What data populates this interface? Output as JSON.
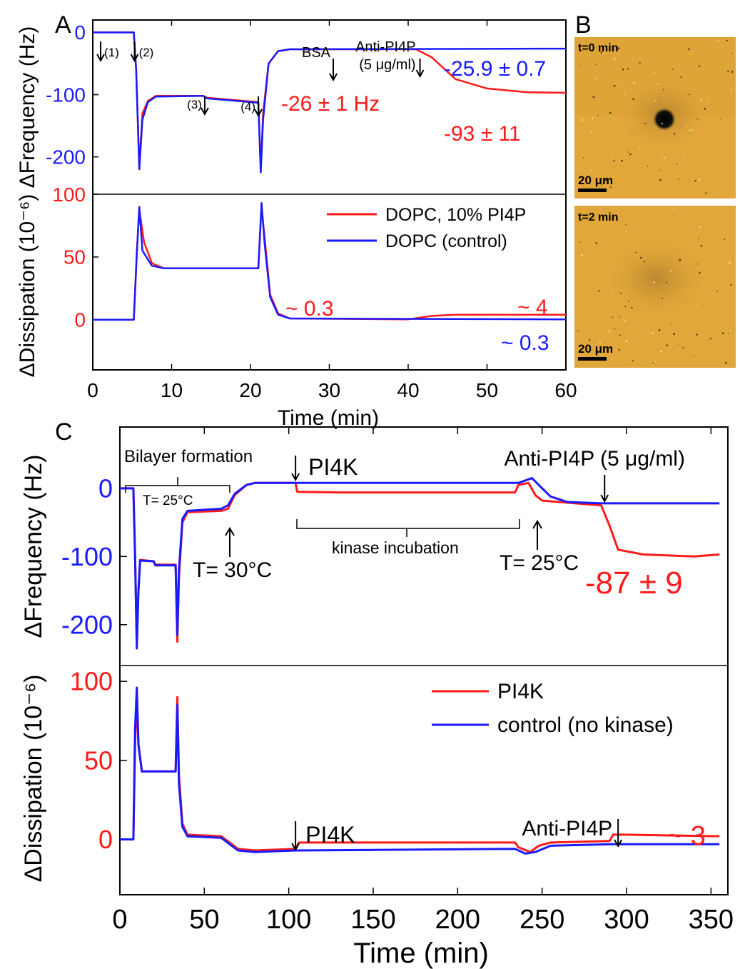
{
  "colors": {
    "red": "#ff1a1a",
    "blue": "#1a1aff",
    "black": "#000000",
    "micro_bg": "#e2a73a"
  },
  "panels": [
    {
      "letter": "A",
      "xlabel": "Time (min)",
      "xticks": [
        0,
        10,
        20,
        30,
        40,
        50,
        60
      ],
      "xlim": [
        0,
        60
      ],
      "freq": {
        "ylabel": "ΔFrequency (Hz)",
        "ylim": [
          -260,
          20
        ],
        "yticks": [
          "0",
          "-100",
          "-200"
        ],
        "series": [
          {
            "color": "red",
            "points": [
              [
                0,
                0
              ],
              [
                5.2,
                0
              ],
              [
                5.5,
                -60
              ],
              [
                5.9,
                -215
              ],
              [
                6.3,
                -130
              ],
              [
                7,
                -110
              ],
              [
                8,
                -102
              ],
              [
                14,
                -102
              ],
              [
                14.5,
                -105
              ],
              [
                21,
                -112
              ],
              [
                21.3,
                -220
              ],
              [
                21.6,
                -130
              ],
              [
                22.3,
                -50
              ],
              [
                23.5,
                -30
              ],
              [
                25,
                -27
              ],
              [
                41,
                -27
              ],
              [
                43,
                -40
              ],
              [
                46,
                -75
              ],
              [
                50,
                -90
              ],
              [
                55,
                -96
              ],
              [
                60,
                -97
              ]
            ]
          },
          {
            "color": "blue",
            "points": [
              [
                0,
                0
              ],
              [
                5.2,
                0
              ],
              [
                5.5,
                -60
              ],
              [
                5.9,
                -220
              ],
              [
                6.3,
                -140
              ],
              [
                7,
                -112
              ],
              [
                8,
                -103
              ],
              [
                14,
                -102
              ],
              [
                14.5,
                -106
              ],
              [
                21,
                -113
              ],
              [
                21.3,
                -225
              ],
              [
                21.6,
                -140
              ],
              [
                22.3,
                -50
              ],
              [
                23.5,
                -30
              ],
              [
                25,
                -27
              ],
              [
                60,
                -26
              ]
            ]
          }
        ],
        "labels": [
          {
            "text": "-25.9 ± 0.7",
            "color": "blue"
          },
          {
            "text": "-26 ± 1 Hz",
            "color": "red"
          },
          {
            "text": "-93 ± 11",
            "color": "red"
          }
        ],
        "arrows": [
          {
            "text": "(1)",
            "t": 1
          },
          {
            "text": "(2)",
            "t": 5.3
          },
          {
            "text": "(3)",
            "t": 14.2
          },
          {
            "text": "(4)",
            "t": 21
          },
          {
            "text": "BSA",
            "t": 30.5
          },
          {
            "text": "Anti-PI4P",
            "sub": "(5 μg/ml)",
            "t": 41.5
          }
        ]
      },
      "diss": {
        "ylabel": "ΔDissipation (10⁻⁶)",
        "ylim": [
          -40,
          100
        ],
        "yticks": [
          "100",
          "50",
          "0"
        ],
        "series": [
          {
            "color": "red",
            "points": [
              [
                0,
                0
              ],
              [
                5.2,
                0
              ],
              [
                5.6,
                55
              ],
              [
                5.9,
                88
              ],
              [
                6.5,
                62
              ],
              [
                7.5,
                45
              ],
              [
                9,
                41
              ],
              [
                21,
                41
              ],
              [
                21.4,
                90
              ],
              [
                21.8,
                65
              ],
              [
                22.5,
                20
              ],
              [
                23.5,
                5
              ],
              [
                25,
                1
              ],
              [
                40,
                0.3
              ],
              [
                43,
                3
              ],
              [
                46,
                4
              ],
              [
                60,
                4
              ]
            ]
          },
          {
            "color": "blue",
            "points": [
              [
                0,
                0
              ],
              [
                5.2,
                0
              ],
              [
                5.6,
                55
              ],
              [
                5.9,
                90
              ],
              [
                6.3,
                55
              ],
              [
                7.5,
                43
              ],
              [
                9,
                41
              ],
              [
                21,
                41
              ],
              [
                21.4,
                93
              ],
              [
                21.8,
                60
              ],
              [
                22.5,
                18
              ],
              [
                23.5,
                4
              ],
              [
                25,
                1
              ],
              [
                60,
                0.3
              ]
            ]
          }
        ],
        "labels": [
          {
            "text": "~ 0.3",
            "color": "red"
          },
          {
            "text": "~ 4",
            "color": "red"
          },
          {
            "text": "~ 0.3",
            "color": "blue"
          }
        ],
        "legend": [
          {
            "text": "DOPC, 10% PI4P",
            "color": "red"
          },
          {
            "text": "DOPC (control)",
            "color": "blue"
          }
        ]
      }
    },
    {
      "letter": "C",
      "xlabel": "Time (min)",
      "xticks": [
        0,
        50,
        100,
        150,
        200,
        250,
        300,
        350
      ],
      "xlim": [
        0,
        360
      ],
      "freq": {
        "ylabel": "ΔFrequency (Hz)",
        "ylim": [
          -260,
          90
        ],
        "yticks": [
          "0",
          "-100",
          "-200"
        ],
        "series": [
          {
            "color": "red",
            "points": [
              [
                0,
                0
              ],
              [
                8,
                0
              ],
              [
                9,
                -100
              ],
              [
                10,
                -225
              ],
              [
                11,
                -150
              ],
              [
                12,
                -105
              ],
              [
                20,
                -107
              ],
              [
                21,
                -112
              ],
              [
                33,
                -112
              ],
              [
                34,
                -225
              ],
              [
                35,
                -130
              ],
              [
                37,
                -50
              ],
              [
                40,
                -35
              ],
              [
                60,
                -33
              ],
              [
                64,
                -30
              ],
              [
                68,
                -10
              ],
              [
                75,
                5
              ],
              [
                80,
                8
              ],
              [
                104,
                8
              ],
              [
                105,
                -5
              ],
              [
                130,
                -6
              ],
              [
                234,
                -6
              ],
              [
                236,
                5
              ],
              [
                242,
                8
              ],
              [
                246,
                -10
              ],
              [
                250,
                -18
              ],
              [
                285,
                -25
              ],
              [
                290,
                -55
              ],
              [
                295,
                -90
              ],
              [
                310,
                -97
              ],
              [
                340,
                -100
              ],
              [
                355,
                -97
              ]
            ]
          },
          {
            "color": "blue",
            "points": [
              [
                0,
                0
              ],
              [
                8,
                0
              ],
              [
                9,
                -100
              ],
              [
                10,
                -235
              ],
              [
                11,
                -150
              ],
              [
                12,
                -106
              ],
              [
                20,
                -107
              ],
              [
                21,
                -113
              ],
              [
                33,
                -113
              ],
              [
                34,
                -215
              ],
              [
                35,
                -120
              ],
              [
                37,
                -45
              ],
              [
                40,
                -33
              ],
              [
                60,
                -30
              ],
              [
                64,
                -25
              ],
              [
                68,
                -8
              ],
              [
                75,
                5
              ],
              [
                80,
                8
              ],
              [
                236,
                8
              ],
              [
                244,
                15
              ],
              [
                248,
                5
              ],
              [
                255,
                -12
              ],
              [
                265,
                -20
              ],
              [
                285,
                -22
              ],
              [
                355,
                -22
              ]
            ]
          }
        ],
        "labels": [
          {
            "text": "-87 ± 9",
            "color": "red"
          },
          {
            "text": "Bilayer formation",
            "color": "black"
          },
          {
            "text": "T= 25°C",
            "color": "black"
          },
          {
            "text": "kinase incubation",
            "color": "black"
          },
          {
            "text": "T= 30°C",
            "color": "black"
          },
          {
            "text": "T= 25°C",
            "color": "black"
          }
        ],
        "arrows": [
          {
            "text": "PI4K",
            "t": 104
          },
          {
            "text": "Anti-PI4P (5 μg/ml)",
            "t": 287
          }
        ]
      },
      "diss": {
        "ylabel": "ΔDissipation (10⁻⁶)",
        "ylim": [
          -35,
          110
        ],
        "yticks": [
          "100",
          "50",
          "0"
        ],
        "series": [
          {
            "color": "red",
            "points": [
              [
                0,
                0
              ],
              [
                8,
                0
              ],
              [
                9,
                60
              ],
              [
                10,
                92
              ],
              [
                11,
                60
              ],
              [
                13,
                43
              ],
              [
                33,
                43
              ],
              [
                34,
                90
              ],
              [
                35,
                40
              ],
              [
                37,
                10
              ],
              [
                40,
                3
              ],
              [
                60,
                2
              ],
              [
                65,
                -2
              ],
              [
                70,
                -6
              ],
              [
                80,
                -7
              ],
              [
                104,
                -6
              ],
              [
                106,
                -2
              ],
              [
                130,
                -2
              ],
              [
                234,
                -2
              ],
              [
                236,
                -5
              ],
              [
                243,
                -8
              ],
              [
                248,
                -4
              ],
              [
                255,
                -2
              ],
              [
                290,
                -1
              ],
              [
                292,
                3
              ],
              [
                300,
                3
              ],
              [
                355,
                2
              ]
            ]
          },
          {
            "color": "blue",
            "points": [
              [
                0,
                0
              ],
              [
                8,
                0
              ],
              [
                9,
                70
              ],
              [
                10,
                96
              ],
              [
                11,
                60
              ],
              [
                13,
                43
              ],
              [
                33,
                43
              ],
              [
                34,
                85
              ],
              [
                35,
                35
              ],
              [
                37,
                8
              ],
              [
                40,
                2
              ],
              [
                60,
                1
              ],
              [
                65,
                -3
              ],
              [
                70,
                -7
              ],
              [
                80,
                -8
              ],
              [
                104,
                -7
              ],
              [
                234,
                -6
              ],
              [
                240,
                -9
              ],
              [
                246,
                -8
              ],
              [
                255,
                -4
              ],
              [
                290,
                -3
              ],
              [
                355,
                -3
              ]
            ]
          }
        ],
        "labels": [
          {
            "text": "~ 3",
            "color": "red"
          }
        ],
        "arrows": [
          {
            "text": "PI4K",
            "t": 104
          },
          {
            "text": "Anti-PI4P",
            "t": 295
          }
        ],
        "legend": [
          {
            "text": "PI4K",
            "color": "red"
          },
          {
            "text": "control (no kinase)",
            "color": "blue"
          }
        ]
      }
    }
  ],
  "micro": {
    "letter": "B",
    "frames": [
      {
        "label": "t=0 min",
        "scale": "20 μm"
      },
      {
        "label": "t=2 min",
        "scale": "20 μm"
      }
    ]
  }
}
